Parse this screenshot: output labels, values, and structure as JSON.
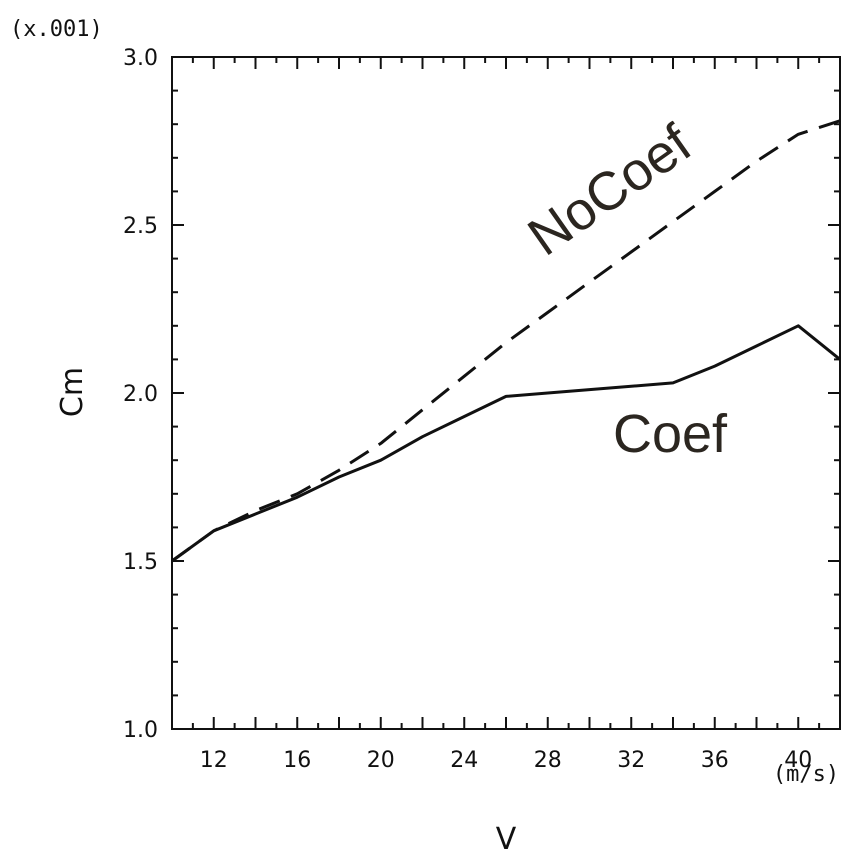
{
  "chart_data": {
    "type": "line",
    "xlabel": "V",
    "xunit": "(m/s)",
    "ylabel": "Cm",
    "yscale_label": "(x.001)",
    "xlim": [
      10,
      42
    ],
    "ylim": [
      1.0,
      3.0
    ],
    "xticks": [
      12,
      16,
      20,
      24,
      28,
      32,
      36,
      40
    ],
    "yticks": [
      "1.0",
      "1.5",
      "2.0",
      "2.5",
      "3.0"
    ],
    "grid": false,
    "series": [
      {
        "name": "NoCoef",
        "line_style": "dashed",
        "color": "#111111",
        "x": [
          10,
          12,
          14,
          16,
          18,
          20,
          22,
          24,
          26,
          28,
          30,
          32,
          34,
          36,
          38,
          40,
          42
        ],
        "y": [
          1.5,
          1.59,
          1.65,
          1.7,
          1.77,
          1.85,
          1.95,
          2.05,
          2.15,
          2.24,
          2.33,
          2.42,
          2.51,
          2.6,
          2.69,
          2.77,
          2.81
        ]
      },
      {
        "name": "Coef",
        "line_style": "solid",
        "color": "#111111",
        "x": [
          10,
          12,
          14,
          16,
          18,
          20,
          22,
          24,
          26,
          28,
          30,
          32,
          34,
          36,
          38,
          40,
          42
        ],
        "y": [
          1.5,
          1.59,
          1.64,
          1.69,
          1.75,
          1.8,
          1.87,
          1.93,
          1.99,
          2.0,
          2.01,
          2.02,
          2.03,
          2.08,
          2.14,
          2.2,
          2.1
        ]
      }
    ]
  }
}
